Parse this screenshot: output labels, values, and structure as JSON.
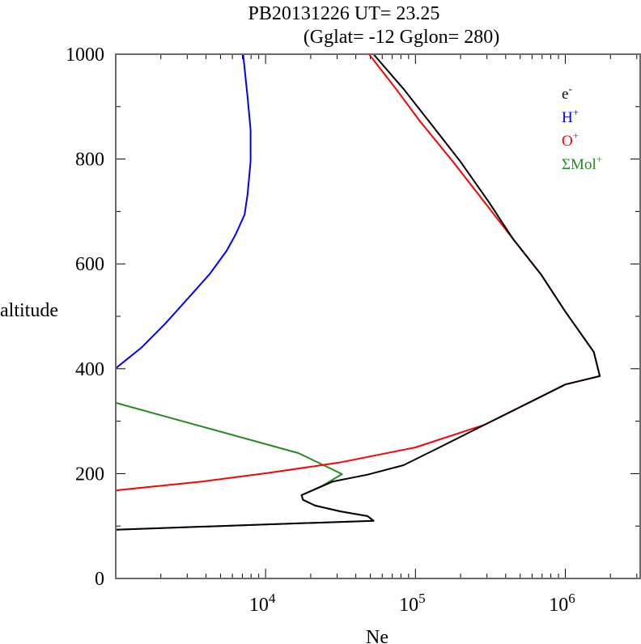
{
  "chart_data": {
    "type": "line",
    "title": "PB20131226   UT=  23.25",
    "subtitle": "(Gglat= -12   Gglon=  280)",
    "xlabel": "Ne",
    "ylabel": "altitude",
    "xscale": "log",
    "xlim": [
      1000,
      3160000
    ],
    "ylim": [
      0,
      1000
    ],
    "yticks": [
      0,
      200,
      400,
      600,
      800,
      1000
    ],
    "ytick_labels": [
      "0",
      "200",
      "400",
      "600",
      "800",
      "1000"
    ],
    "xticks": [
      {
        "base": "10",
        "exp": "4",
        "value": 10000
      },
      {
        "base": "10",
        "exp": "5",
        "value": 100000
      },
      {
        "base": "10",
        "exp": "6",
        "value": 1000000
      }
    ],
    "legend_placement": "top-right",
    "series": [
      {
        "name": "e",
        "sup": "-",
        "color": "#000000",
        "points": [
          [
            3.0,
            93
          ],
          [
            3.4,
            97
          ],
          [
            4.72,
            110
          ],
          [
            4.68,
            119
          ],
          [
            4.5,
            128
          ],
          [
            4.33,
            139
          ],
          [
            4.25,
            150
          ],
          [
            4.24,
            159
          ],
          [
            4.45,
            185
          ],
          [
            4.68,
            198
          ],
          [
            4.92,
            216
          ],
          [
            5.14,
            247
          ],
          [
            5.46,
            293
          ],
          [
            5.79,
            340
          ],
          [
            6.0,
            370
          ],
          [
            6.23,
            386
          ],
          [
            6.19,
            432
          ],
          [
            6.0,
            509
          ],
          [
            5.84,
            579
          ],
          [
            5.65,
            648
          ],
          [
            5.49,
            718
          ],
          [
            5.3,
            795
          ],
          [
            5.09,
            872
          ],
          [
            4.92,
            934
          ],
          [
            4.72,
            1000
          ]
        ]
      },
      {
        "name": "H",
        "sup": "+",
        "color": "#0000ff",
        "points": [
          [
            3.0,
            401
          ],
          [
            3.17,
            440
          ],
          [
            3.33,
            486
          ],
          [
            3.5,
            540
          ],
          [
            3.63,
            582
          ],
          [
            3.74,
            625
          ],
          [
            3.8,
            656
          ],
          [
            3.86,
            694
          ],
          [
            3.88,
            733
          ],
          [
            3.9,
            795
          ],
          [
            3.9,
            856
          ],
          [
            3.88,
            918
          ],
          [
            3.85,
            1000
          ]
        ]
      },
      {
        "name": "O",
        "sup": "+",
        "color": "#ff0000",
        "points": [
          [
            3.0,
            168
          ],
          [
            3.58,
            185
          ],
          [
            4.01,
            201
          ],
          [
            4.49,
            221
          ],
          [
            5.0,
            250
          ],
          [
            5.46,
            293
          ],
          [
            5.79,
            340
          ],
          [
            6.0,
            370
          ],
          [
            6.23,
            386
          ],
          [
            6.19,
            432
          ],
          [
            6.0,
            509
          ],
          [
            5.84,
            579
          ],
          [
            5.65,
            648
          ],
          [
            5.46,
            718
          ],
          [
            5.25,
            795
          ],
          [
            5.03,
            872
          ],
          [
            4.87,
            934
          ],
          [
            4.69,
            1000
          ]
        ]
      },
      {
        "name": "ΣMol",
        "sup": "+",
        "color": "#228b22",
        "points": [
          [
            3.0,
            335
          ],
          [
            4.22,
            239
          ],
          [
            4.51,
            199
          ],
          [
            4.38,
            177
          ],
          [
            4.24,
            159
          ],
          [
            4.25,
            150
          ],
          [
            4.33,
            139
          ],
          [
            4.5,
            128
          ],
          [
            4.68,
            119
          ],
          [
            4.72,
            110
          ],
          [
            3.4,
            97
          ],
          [
            3.0,
            93
          ]
        ]
      }
    ]
  }
}
